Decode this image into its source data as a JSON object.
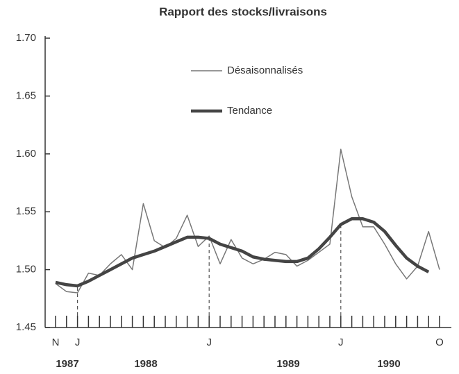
{
  "chart_data": {
    "type": "line",
    "title": "Rapport des stocks/livraisons",
    "categories": [
      "N",
      null,
      "J",
      null,
      null,
      null,
      null,
      null,
      null,
      null,
      null,
      null,
      null,
      null,
      "J",
      null,
      null,
      null,
      null,
      null,
      null,
      null,
      null,
      null,
      null,
      null,
      "J",
      null,
      null,
      null,
      null,
      null,
      null,
      null,
      null,
      "O"
    ],
    "year_labels": [
      "1987",
      "1988",
      "1989",
      "1990"
    ],
    "series": [
      {
        "name": "Désaisonnalisés",
        "color": "#777777",
        "values": [
          1.488,
          1.481,
          1.48,
          1.497,
          1.495,
          1.505,
          1.513,
          1.5,
          1.557,
          1.525,
          1.519,
          1.527,
          1.547,
          1.52,
          1.529,
          1.505,
          1.526,
          1.51,
          1.505,
          1.509,
          1.515,
          1.513,
          1.503,
          1.508,
          1.515,
          1.522,
          1.604,
          1.563,
          1.537,
          1.537,
          1.522,
          1.505,
          1.492,
          1.503,
          1.533,
          1.5
        ]
      },
      {
        "name": "Tendance",
        "color": "#444444",
        "values": [
          1.489,
          1.487,
          1.486,
          1.49,
          1.495,
          1.5,
          1.505,
          1.51,
          1.513,
          1.516,
          1.52,
          1.524,
          1.528,
          1.528,
          1.527,
          1.522,
          1.519,
          1.516,
          1.511,
          1.509,
          1.508,
          1.507,
          1.507,
          1.51,
          1.518,
          1.528,
          1.539,
          1.544,
          1.544,
          1.541,
          1.533,
          1.521,
          1.51,
          1.503,
          1.498,
          null
        ]
      }
    ],
    "ylim": [
      1.45,
      1.7
    ],
    "yticks": [
      1.45,
      {
        "value": 1.5,
        "label": "1.50"
      },
      1.55,
      {
        "value": 1.6,
        "label": "1.60"
      },
      1.65,
      {
        "value": 1.7,
        "label": "1.70"
      }
    ]
  }
}
